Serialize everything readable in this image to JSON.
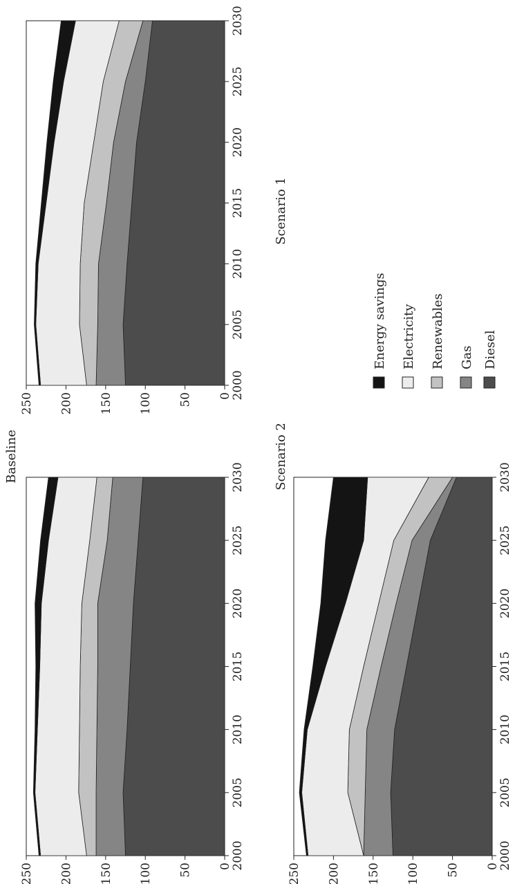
{
  "colors": {
    "Energy savings": "#141414",
    "Electricity": "#ececec",
    "Renewables": "#c2c2c2",
    "Gas": "#858585",
    "Diesel": "#4c4c4c",
    "outline": "#222222"
  },
  "legend": {
    "items": [
      "Energy savings",
      "Electricity",
      "Renewables",
      "Gas",
      "Diesel"
    ]
  },
  "chart_data": [
    {
      "type": "area",
      "stacked": true,
      "title": "Baseline",
      "x": [
        2000,
        2005,
        2010,
        2015,
        2020,
        2025,
        2030
      ],
      "x_ticks": [
        "2000",
        "2005",
        "2010",
        "2015",
        "2020",
        "2025",
        "2030"
      ],
      "ylim": [
        0,
        250
      ],
      "y_ticks": [
        "0",
        "50",
        "100",
        "150",
        "200",
        "250"
      ],
      "series": [
        {
          "name": "Diesel",
          "values": [
            125,
            128,
            123,
            119,
            115,
            109,
            103
          ]
        },
        {
          "name": "Gas",
          "values": [
            37,
            34,
            38,
            41,
            45,
            39,
            38
          ]
        },
        {
          "name": "Renewables",
          "values": [
            12,
            22,
            22,
            22,
            20,
            22,
            20
          ]
        },
        {
          "name": "Electricity",
          "values": [
            58,
            55,
            53,
            51,
            51,
            52,
            49
          ]
        },
        {
          "name": "Energy savings",
          "values": [
            2,
            2,
            3,
            5,
            8,
            10,
            12
          ]
        }
      ]
    },
    {
      "type": "area",
      "stacked": true,
      "title": "Scenario 1",
      "x": [
        2000,
        2005,
        2010,
        2015,
        2020,
        2025,
        2030
      ],
      "x_ticks": [
        "2000",
        "2005",
        "2010",
        "2015",
        "2020",
        "2025",
        "2030"
      ],
      "ylim": [
        0,
        250
      ],
      "y_ticks": [
        "0",
        "50",
        "100",
        "150",
        "200",
        "250"
      ],
      "series": [
        {
          "name": "Diesel",
          "values": [
            125,
            128,
            123,
            117,
            111,
            100,
            91
          ]
        },
        {
          "name": "Gas",
          "values": [
            37,
            32,
            36,
            32,
            29,
            25,
            12
          ]
        },
        {
          "name": "Renewables",
          "values": [
            12,
            23,
            23,
            28,
            25,
            28,
            30
          ]
        },
        {
          "name": "Electricity",
          "values": [
            58,
            55,
            53,
            48,
            50,
            50,
            55
          ]
        },
        {
          "name": "Energy savings",
          "values": [
            2,
            2,
            3,
            6,
            9,
            13,
            18
          ]
        }
      ]
    },
    {
      "type": "area",
      "stacked": true,
      "title": "Scenario 2",
      "x": [
        2000,
        2005,
        2010,
        2015,
        2020,
        2025,
        2030
      ],
      "x_ticks": [
        "2000",
        "2005",
        "2010",
        "2015",
        "2020",
        "2025",
        "2030"
      ],
      "ylim": [
        0,
        250
      ],
      "y_ticks": [
        "0",
        "50",
        "100",
        "150",
        "200",
        "250"
      ],
      "series": [
        {
          "name": "Diesel",
          "values": [
            125,
            128,
            123,
            108,
            93,
            78,
            45
          ]
        },
        {
          "name": "Gas",
          "values": [
            37,
            32,
            35,
            32,
            28,
            23,
            5
          ]
        },
        {
          "name": "Renewables",
          "values": [
            0,
            22,
            22,
            22,
            22,
            23,
            30
          ]
        },
        {
          "name": "Electricity",
          "values": [
            70,
            58,
            53,
            48,
            42,
            38,
            77
          ]
        },
        {
          "name": "Energy savings",
          "values": [
            2,
            3,
            4,
            16,
            31,
            48,
            43
          ]
        }
      ]
    }
  ]
}
